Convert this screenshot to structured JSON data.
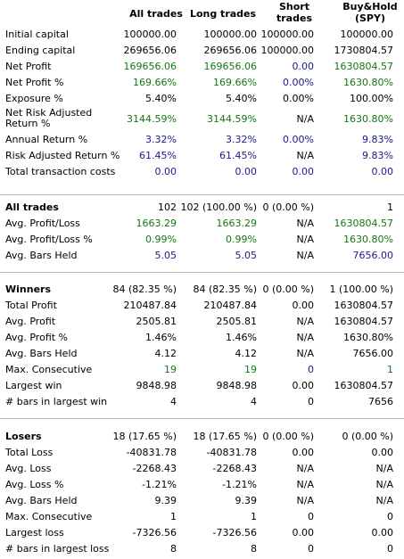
{
  "headers": {
    "all": "All trades",
    "long": "Long trades",
    "short": "Short trades",
    "bh": "Buy&Hold (SPY)"
  },
  "summary": [
    {
      "label": "Initial capital",
      "v": [
        "100000.00",
        "100000.00",
        "100000.00",
        "100000.00"
      ],
      "c": [
        "",
        "",
        "",
        ""
      ]
    },
    {
      "label": "Ending capital",
      "v": [
        "269656.06",
        "269656.06",
        "100000.00",
        "1730804.57"
      ],
      "c": [
        "",
        "",
        "",
        ""
      ]
    },
    {
      "label": "Net Profit",
      "v": [
        "169656.06",
        "169656.06",
        "0.00",
        "1630804.57"
      ],
      "c": [
        "grn",
        "grn",
        "blu",
        "grn"
      ]
    },
    {
      "label": "Net Profit %",
      "v": [
        "169.66%",
        "169.66%",
        "0.00%",
        "1630.80%"
      ],
      "c": [
        "grn",
        "grn",
        "blu",
        "grn"
      ]
    },
    {
      "label": "Exposure %",
      "v": [
        "5.40%",
        "5.40%",
        "0.00%",
        "100.00%"
      ],
      "c": [
        "",
        "",
        "",
        ""
      ]
    },
    {
      "label": "Net Risk Adjusted Return %",
      "v": [
        "3144.59%",
        "3144.59%",
        "N/A",
        "1630.80%"
      ],
      "c": [
        "grn",
        "grn",
        "",
        "grn"
      ]
    },
    {
      "label": "Annual Return %",
      "v": [
        "3.32%",
        "3.32%",
        "0.00%",
        "9.83%"
      ],
      "c": [
        "blu",
        "blu",
        "blu",
        "blu"
      ]
    },
    {
      "label": "Risk Adjusted Return %",
      "v": [
        "61.45%",
        "61.45%",
        "N/A",
        "9.83%"
      ],
      "c": [
        "blu",
        "blu",
        "",
        "blu"
      ]
    },
    {
      "label": "Total transaction costs",
      "v": [
        "0.00",
        "0.00",
        "0.00",
        "0.00"
      ],
      "c": [
        "blu",
        "blu",
        "blu",
        "blu"
      ]
    }
  ],
  "all_trades": [
    {
      "label": "All trades",
      "v": [
        "102",
        "102 (100.00 %)",
        "0 (0.00 %)",
        "1"
      ],
      "c": [
        "",
        "",
        "",
        ""
      ]
    },
    {
      "label": "Avg. Profit/Loss",
      "v": [
        "1663.29",
        "1663.29",
        "N/A",
        "1630804.57"
      ],
      "c": [
        "grn",
        "grn",
        "",
        "grn"
      ]
    },
    {
      "label": "Avg. Profit/Loss %",
      "v": [
        "0.99%",
        "0.99%",
        "N/A",
        "1630.80%"
      ],
      "c": [
        "grn",
        "grn",
        "",
        "grn"
      ]
    },
    {
      "label": "Avg. Bars Held",
      "v": [
        "5.05",
        "5.05",
        "N/A",
        "7656.00"
      ],
      "c": [
        "blu",
        "blu",
        "",
        "blu"
      ]
    }
  ],
  "winners": [
    {
      "label": "Winners",
      "v": [
        "84 (82.35 %)",
        "84 (82.35 %)",
        "0 (0.00 %)",
        "1 (100.00 %)"
      ],
      "c": [
        "",
        "",
        "",
        ""
      ]
    },
    {
      "label": "Total Profit",
      "v": [
        "210487.84",
        "210487.84",
        "0.00",
        "1630804.57"
      ],
      "c": [
        "",
        "",
        "",
        ""
      ]
    },
    {
      "label": "Avg. Profit",
      "v": [
        "2505.81",
        "2505.81",
        "N/A",
        "1630804.57"
      ],
      "c": [
        "",
        "",
        "",
        ""
      ]
    },
    {
      "label": "Avg. Profit %",
      "v": [
        "1.46%",
        "1.46%",
        "N/A",
        "1630.80%"
      ],
      "c": [
        "",
        "",
        "",
        ""
      ]
    },
    {
      "label": "Avg. Bars Held",
      "v": [
        "4.12",
        "4.12",
        "N/A",
        "7656.00"
      ],
      "c": [
        "",
        "",
        "",
        ""
      ]
    },
    {
      "label": "Max. Consecutive",
      "v": [
        "19",
        "19",
        "0",
        "1"
      ],
      "c": [
        "grn",
        "grn",
        "blu",
        "grn"
      ]
    },
    {
      "label": "Largest win",
      "v": [
        "9848.98",
        "9848.98",
        "0.00",
        "1630804.57"
      ],
      "c": [
        "",
        "",
        "",
        ""
      ]
    },
    {
      "label": "# bars in largest win",
      "v": [
        "4",
        "4",
        "0",
        "7656"
      ],
      "c": [
        "",
        "",
        "",
        ""
      ]
    }
  ],
  "losers": [
    {
      "label": "Losers",
      "v": [
        "18 (17.65 %)",
        "18 (17.65 %)",
        "0 (0.00 %)",
        "0 (0.00 %)"
      ],
      "c": [
        "",
        "",
        "",
        ""
      ]
    },
    {
      "label": "Total Loss",
      "v": [
        "-40831.78",
        "-40831.78",
        "0.00",
        "0.00"
      ],
      "c": [
        "",
        "",
        "",
        ""
      ]
    },
    {
      "label": "Avg. Loss",
      "v": [
        "-2268.43",
        "-2268.43",
        "N/A",
        "N/A"
      ],
      "c": [
        "",
        "",
        "",
        ""
      ]
    },
    {
      "label": "Avg. Loss %",
      "v": [
        "-1.21%",
        "-1.21%",
        "N/A",
        "N/A"
      ],
      "c": [
        "",
        "",
        "",
        ""
      ]
    },
    {
      "label": "Avg. Bars Held",
      "v": [
        "9.39",
        "9.39",
        "N/A",
        "N/A"
      ],
      "c": [
        "",
        "",
        "",
        ""
      ]
    },
    {
      "label": "Max. Consecutive",
      "v": [
        "1",
        "1",
        "0",
        "0"
      ],
      "c": [
        "",
        "",
        "",
        ""
      ]
    },
    {
      "label": "Largest loss",
      "v": [
        "-7326.56",
        "-7326.56",
        "0.00",
        "0.00"
      ],
      "c": [
        "",
        "",
        "",
        ""
      ]
    },
    {
      "label": "# bars in largest loss",
      "v": [
        "8",
        "8",
        "0",
        "0"
      ],
      "c": [
        "",
        "",
        "",
        ""
      ]
    }
  ]
}
